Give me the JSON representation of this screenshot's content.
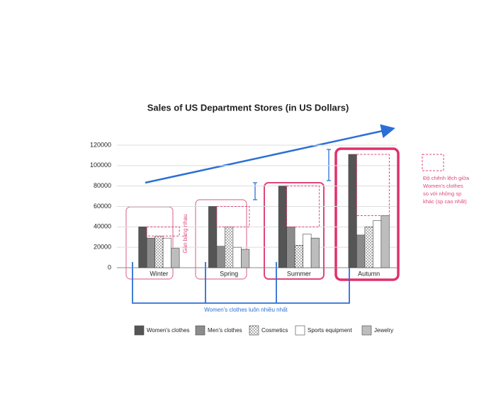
{
  "chart_data": {
    "type": "bar",
    "title": "Sales of US Department Stores (in US Dollars)",
    "categories": [
      "Winter",
      "Spring",
      "Summer",
      "Autumn"
    ],
    "series": [
      {
        "name": "Women's clothes",
        "color": "#555555",
        "values": [
          40000,
          60000,
          80000,
          111000
        ]
      },
      {
        "name": "Men's clothes",
        "color": "#8c8c8c",
        "values": [
          29000,
          21000,
          40000,
          32000
        ]
      },
      {
        "name": "Cosmetics",
        "color": "#ffffff",
        "values": [
          31000,
          40000,
          22000,
          40000
        ]
      },
      {
        "name": "Sports equipment",
        "color": "#ffffff",
        "values": [
          29000,
          20000,
          33000,
          46000
        ]
      },
      {
        "name": "Jewelry",
        "color": "#bdbdbd",
        "values": [
          19000,
          18000,
          29000,
          51000
        ]
      }
    ],
    "ylim": [
      0,
      120000
    ],
    "yticks": [
      0,
      20000,
      40000,
      60000,
      80000,
      100000,
      120000
    ],
    "grid": true,
    "annotations": {
      "similar": "Gần bằng nhau",
      "always_most": "Women's clothes luôn nhiều nhất",
      "difference": [
        "Độ chênh lệch giữa",
        "Women's clothes",
        "so với những sp",
        "khác (sp cao nhất)"
      ]
    }
  }
}
